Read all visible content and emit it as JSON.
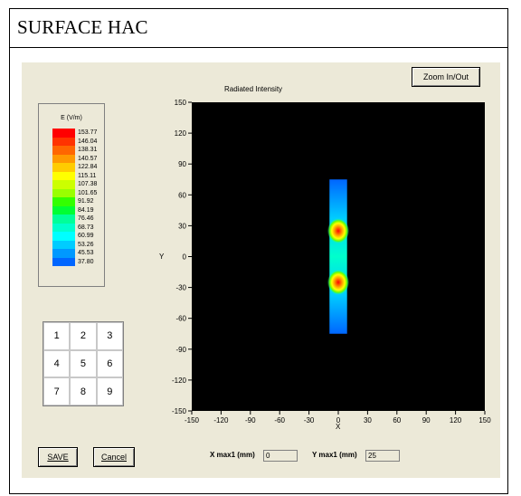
{
  "page": {
    "title": "SURFACE HAC"
  },
  "buttons": {
    "zoom": "Zoom In/Out",
    "save": "SAVE",
    "cancel": "Cancel"
  },
  "legend": {
    "title": "E (V/m)",
    "entries": [
      {
        "value": "153.77",
        "color": "#ff0000"
      },
      {
        "value": "146.04",
        "color": "#ff3300"
      },
      {
        "value": "138.31",
        "color": "#ff6600"
      },
      {
        "value": "140.57",
        "color": "#ff9900"
      },
      {
        "value": "122.84",
        "color": "#ffcc00"
      },
      {
        "value": "115.11",
        "color": "#ffff00"
      },
      {
        "value": "107.38",
        "color": "#ccff00"
      },
      {
        "value": "101.65",
        "color": "#99ff00"
      },
      {
        "value": "91.92",
        "color": "#33ff00"
      },
      {
        "value": "84.19",
        "color": "#00ff33"
      },
      {
        "value": "76.46",
        "color": "#00ff99"
      },
      {
        "value": "68.73",
        "color": "#00ffcc"
      },
      {
        "value": "60.99",
        "color": "#00ffff"
      },
      {
        "value": "53.26",
        "color": "#00ccff"
      },
      {
        "value": "45.53",
        "color": "#0099ff"
      },
      {
        "value": "37.80",
        "color": "#0066ff"
      }
    ]
  },
  "numgrid": [
    "1",
    "2",
    "3",
    "4",
    "5",
    "6",
    "7",
    "8",
    "9"
  ],
  "chart": {
    "title": "Radiated Intensity",
    "xlabel": "X",
    "ylabel": "Y",
    "xticks": [
      "-150",
      "-120",
      "-90",
      "-60",
      "-30",
      "0",
      "30",
      "60",
      "90",
      "120",
      "150"
    ],
    "yticks": [
      "150",
      "120",
      "90",
      "60",
      "30",
      "0",
      "-30",
      "-60",
      "-90",
      "-120",
      "-150"
    ]
  },
  "readouts": {
    "xmax_label": "X max1 (mm)",
    "xmax_value": "0",
    "ymax_label": "Y max1 (mm)",
    "ymax_value": "25"
  },
  "chart_data": {
    "type": "heatmap",
    "title": "Radiated Intensity",
    "xlabel": "X",
    "ylabel": "Y",
    "xlim": [
      -150,
      150
    ],
    "ylim": [
      -150,
      150
    ],
    "background": "#000000",
    "field_region": {
      "x": [
        -9,
        9
      ],
      "y": [
        -75,
        75
      ]
    },
    "hotspots": [
      {
        "x": 0,
        "y": 25,
        "peak": 153.77
      },
      {
        "x": 0,
        "y": -25,
        "peak": 146.04
      }
    ],
    "color_scale_range": [
      37.8,
      153.77
    ]
  }
}
